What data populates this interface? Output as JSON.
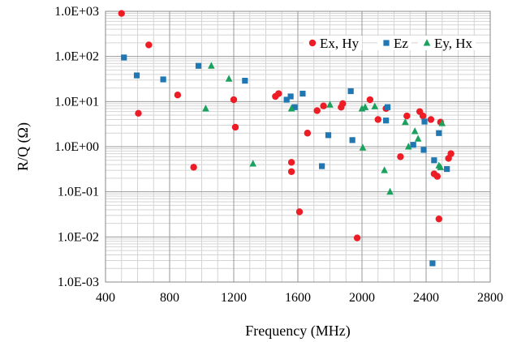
{
  "chart_data": {
    "type": "scatter",
    "title": "",
    "xlabel": "Frequency (MHz)",
    "ylabel": "R/Q (Ω)",
    "xlim": [
      400,
      2800
    ],
    "x_ticks": [
      400,
      800,
      1200,
      1600,
      2000,
      2400,
      2800
    ],
    "x_tick_labels": [
      "400",
      "800",
      "1200",
      "1600",
      "2000",
      "2400",
      "2800"
    ],
    "x_minor_step": 100,
    "y_scale": "log",
    "ylim": [
      0.001,
      1000
    ],
    "y_ticks": [
      0.001,
      0.01,
      0.1,
      1,
      10,
      100,
      1000
    ],
    "y_tick_labels": [
      "1.0E-03",
      "1.0E-02",
      "1.0E-01",
      "1.0E+00",
      "1.0E+01",
      "1.0E+02",
      "1.0E+03"
    ],
    "grid": true,
    "legend_position": "top-right",
    "series": [
      {
        "name": "Ex, Hy",
        "marker": "circle",
        "color": "#ee1c25",
        "points": [
          [
            500,
            900
          ],
          [
            670,
            180
          ],
          [
            605,
            5.5
          ],
          [
            850,
            14
          ],
          [
            950,
            0.35
          ],
          [
            1200,
            11
          ],
          [
            1210,
            2.7
          ],
          [
            1460,
            13
          ],
          [
            1480,
            15
          ],
          [
            1560,
            0.45
          ],
          [
            1560,
            0.28
          ],
          [
            1610,
            0.036
          ],
          [
            1660,
            2.0
          ],
          [
            1720,
            6.3
          ],
          [
            1760,
            8.0
          ],
          [
            1870,
            7.5
          ],
          [
            1880,
            9.0
          ],
          [
            1970,
            0.0095
          ],
          [
            2050,
            11
          ],
          [
            2100,
            4.0
          ],
          [
            2150,
            7.0
          ],
          [
            2240,
            0.6
          ],
          [
            2280,
            4.8
          ],
          [
            2360,
            6.0
          ],
          [
            2380,
            4.8
          ],
          [
            2430,
            4.0
          ],
          [
            2450,
            0.25
          ],
          [
            2470,
            0.22
          ],
          [
            2480,
            0.025
          ],
          [
            2490,
            3.5
          ],
          [
            2540,
            0.55
          ],
          [
            2555,
            0.7
          ]
        ]
      },
      {
        "name": "Ez",
        "marker": "square",
        "color": "#1f77b4",
        "points": [
          [
            515,
            95
          ],
          [
            595,
            38
          ],
          [
            760,
            31
          ],
          [
            980,
            62
          ],
          [
            1270,
            29
          ],
          [
            1530,
            11
          ],
          [
            1555,
            13
          ],
          [
            1580,
            7.5
          ],
          [
            1630,
            15
          ],
          [
            1750,
            0.37
          ],
          [
            1790,
            1.8
          ],
          [
            1930,
            17
          ],
          [
            1940,
            1.4
          ],
          [
            2150,
            3.8
          ],
          [
            2160,
            7.5
          ],
          [
            2320,
            1.1
          ],
          [
            2385,
            0.85
          ],
          [
            2390,
            3.6
          ],
          [
            2440,
            0.0026
          ],
          [
            2450,
            0.5
          ],
          [
            2480,
            2.0
          ],
          [
            2530,
            0.32
          ]
        ]
      },
      {
        "name": "Ey, Hx",
        "marker": "triangle",
        "color": "#1aa15e",
        "points": [
          [
            1025,
            7.0
          ],
          [
            1060,
            62
          ],
          [
            1170,
            32
          ],
          [
            1320,
            0.42
          ],
          [
            1560,
            7.0
          ],
          [
            1800,
            8.5
          ],
          [
            2000,
            7.0
          ],
          [
            2005,
            0.95
          ],
          [
            2020,
            7.5
          ],
          [
            2080,
            7.8
          ],
          [
            2140,
            0.3
          ],
          [
            2175,
            0.1
          ],
          [
            2270,
            3.5
          ],
          [
            2290,
            1.0
          ],
          [
            2330,
            2.2
          ],
          [
            2350,
            1.5
          ],
          [
            2480,
            0.38
          ],
          [
            2490,
            0.35
          ],
          [
            2500,
            3.3
          ]
        ]
      }
    ]
  }
}
